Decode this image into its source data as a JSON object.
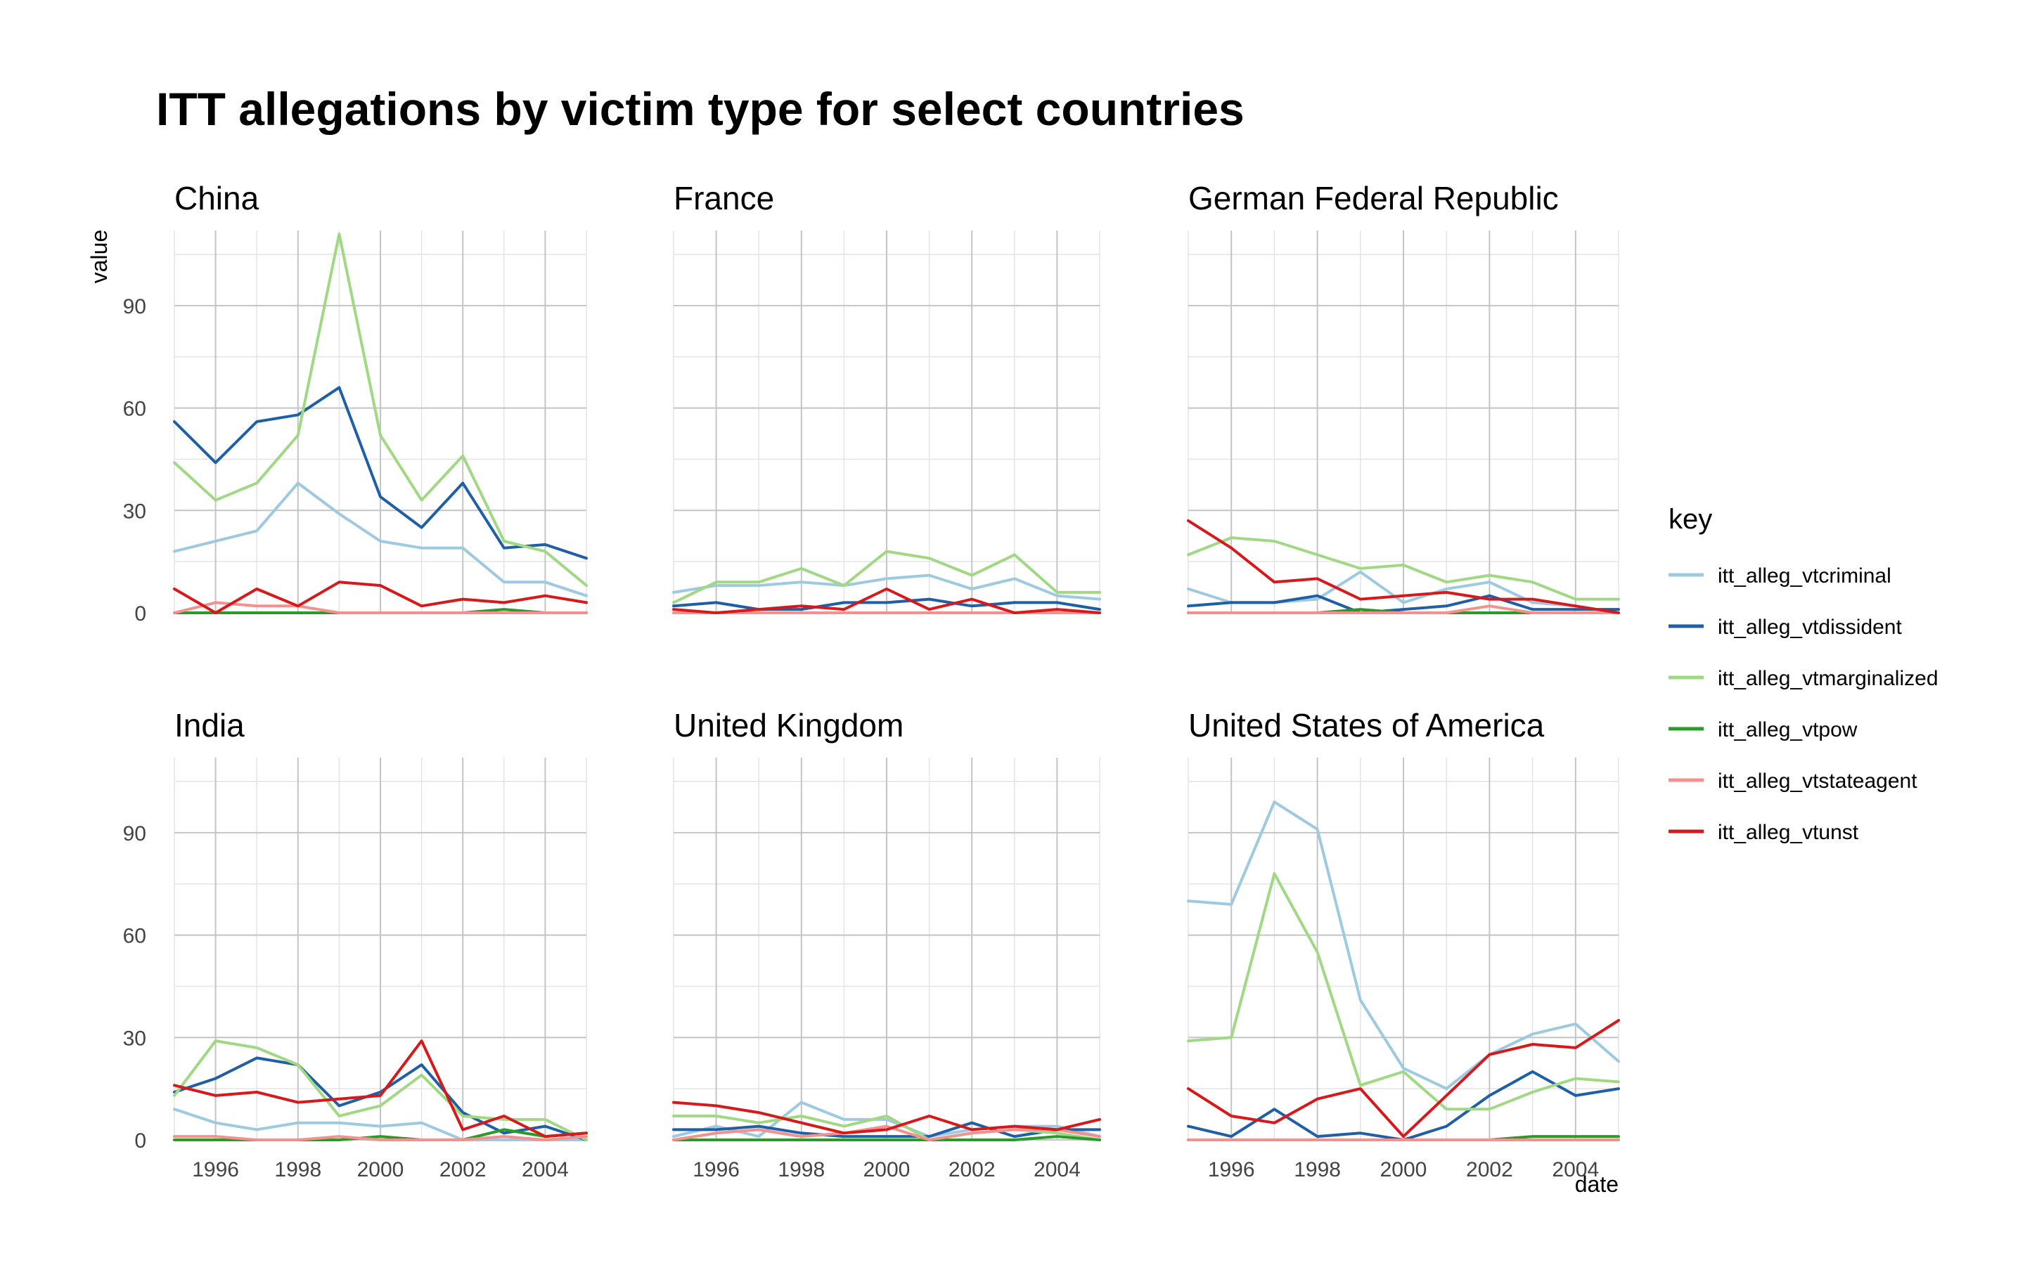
{
  "chart_data": {
    "type": "line",
    "title": "ITT allegations by victim type for select countries",
    "xlabel": "date",
    "ylabel": "value",
    "xlim": [
      1995,
      2005
    ],
    "ylim": [
      0,
      112
    ],
    "x_ticks": [
      1996,
      1998,
      2000,
      2002,
      2004
    ],
    "y_ticks": [
      0,
      30,
      60,
      90
    ],
    "grid": true,
    "legend": {
      "title": "key",
      "position": "right",
      "entries": [
        {
          "key": "itt_alleg_vtcriminal",
          "color": "#9ecae1"
        },
        {
          "key": "itt_alleg_vtdissident",
          "color": "#1f5fa6"
        },
        {
          "key": "itt_alleg_vtmarginalized",
          "color": "#a1d883"
        },
        {
          "key": "itt_alleg_vtpow",
          "color": "#2a9a2a"
        },
        {
          "key": "itt_alleg_vtstateagent",
          "color": "#f4908e"
        },
        {
          "key": "itt_alleg_vtunst",
          "color": "#d7191c"
        }
      ]
    },
    "x": [
      1995,
      1996,
      1997,
      1998,
      1999,
      2000,
      2001,
      2002,
      2003,
      2004,
      2005
    ],
    "panels": [
      {
        "name": "China",
        "series": [
          {
            "name": "itt_alleg_vtcriminal",
            "values": [
              18,
              21,
              24,
              38,
              29,
              21,
              19,
              19,
              9,
              9,
              5
            ]
          },
          {
            "name": "itt_alleg_vtdissident",
            "values": [
              56,
              44,
              56,
              58,
              66,
              34,
              25,
              38,
              19,
              20,
              16
            ]
          },
          {
            "name": "itt_alleg_vtmarginalized",
            "values": [
              44,
              33,
              38,
              52,
              111,
              52,
              33,
              46,
              21,
              18,
              8
            ]
          },
          {
            "name": "itt_alleg_vtpow",
            "values": [
              0,
              0,
              0,
              0,
              0,
              0,
              0,
              0,
              1,
              0,
              0
            ]
          },
          {
            "name": "itt_alleg_vtstateagent",
            "values": [
              0,
              3,
              2,
              2,
              0,
              0,
              0,
              0,
              0,
              0,
              0
            ]
          },
          {
            "name": "itt_alleg_vtunst",
            "values": [
              7,
              0,
              7,
              2,
              9,
              8,
              2,
              4,
              3,
              5,
              3
            ]
          }
        ]
      },
      {
        "name": "France",
        "series": [
          {
            "name": "itt_alleg_vtcriminal",
            "values": [
              6,
              8,
              8,
              9,
              8,
              10,
              11,
              7,
              10,
              5,
              4
            ]
          },
          {
            "name": "itt_alleg_vtdissident",
            "values": [
              2,
              3,
              1,
              1,
              3,
              3,
              4,
              2,
              3,
              3,
              1
            ]
          },
          {
            "name": "itt_alleg_vtmarginalized",
            "values": [
              3,
              9,
              9,
              13,
              8,
              18,
              16,
              11,
              17,
              6,
              6
            ]
          },
          {
            "name": "itt_alleg_vtpow",
            "values": [
              0,
              0,
              0,
              0,
              0,
              0,
              0,
              0,
              0,
              0,
              0
            ]
          },
          {
            "name": "itt_alleg_vtstateagent",
            "values": [
              0,
              0,
              0,
              0,
              0,
              0,
              0,
              0,
              0,
              0,
              0
            ]
          },
          {
            "name": "itt_alleg_vtunst",
            "values": [
              1,
              0,
              1,
              2,
              1,
              7,
              1,
              4,
              0,
              1,
              0
            ]
          }
        ]
      },
      {
        "name": "German Federal Republic",
        "series": [
          {
            "name": "itt_alleg_vtcriminal",
            "values": [
              7,
              3,
              3,
              4,
              12,
              3,
              7,
              9,
              3,
              2,
              0
            ]
          },
          {
            "name": "itt_alleg_vtdissident",
            "values": [
              2,
              3,
              3,
              5,
              0,
              1,
              2,
              5,
              1,
              1,
              1
            ]
          },
          {
            "name": "itt_alleg_vtmarginalized",
            "values": [
              17,
              22,
              21,
              17,
              13,
              14,
              9,
              11,
              9,
              4,
              4
            ]
          },
          {
            "name": "itt_alleg_vtpow",
            "values": [
              0,
              0,
              0,
              0,
              1,
              0,
              0,
              0,
              0,
              0,
              0
            ]
          },
          {
            "name": "itt_alleg_vtstateagent",
            "values": [
              0,
              0,
              0,
              0,
              0,
              0,
              0,
              2,
              0,
              0,
              0
            ]
          },
          {
            "name": "itt_alleg_vtunst",
            "values": [
              27,
              19,
              9,
              10,
              4,
              5,
              6,
              4,
              4,
              2,
              0
            ]
          }
        ]
      },
      {
        "name": "India",
        "series": [
          {
            "name": "itt_alleg_vtcriminal",
            "values": [
              9,
              5,
              3,
              5,
              5,
              4,
              5,
              0,
              0,
              0,
              0
            ]
          },
          {
            "name": "itt_alleg_vtdissident",
            "values": [
              14,
              18,
              24,
              22,
              10,
              14,
              22,
              8,
              2,
              4,
              0
            ]
          },
          {
            "name": "itt_alleg_vtmarginalized",
            "values": [
              13,
              29,
              27,
              22,
              7,
              10,
              19,
              7,
              6,
              6,
              0
            ]
          },
          {
            "name": "itt_alleg_vtpow",
            "values": [
              0,
              0,
              0,
              0,
              0,
              1,
              0,
              0,
              3,
              1,
              2
            ]
          },
          {
            "name": "itt_alleg_vtstateagent",
            "values": [
              1,
              1,
              0,
              0,
              1,
              0,
              0,
              0,
              1,
              0,
              1
            ]
          },
          {
            "name": "itt_alleg_vtunst",
            "values": [
              16,
              13,
              14,
              11,
              12,
              13,
              29,
              3,
              7,
              1,
              2
            ]
          }
        ]
      },
      {
        "name": "United Kingdom",
        "series": [
          {
            "name": "itt_alleg_vtcriminal",
            "values": [
              1,
              4,
              1,
              11,
              6,
              6,
              1,
              3,
              4,
              4,
              1
            ]
          },
          {
            "name": "itt_alleg_vtdissident",
            "values": [
              3,
              3,
              4,
              2,
              1,
              1,
              1,
              5,
              1,
              3,
              3
            ]
          },
          {
            "name": "itt_alleg_vtmarginalized",
            "values": [
              7,
              7,
              5,
              7,
              4,
              7,
              0,
              2,
              3,
              2,
              0
            ]
          },
          {
            "name": "itt_alleg_vtpow",
            "values": [
              0,
              0,
              0,
              0,
              0,
              0,
              0,
              0,
              0,
              1,
              0
            ]
          },
          {
            "name": "itt_alleg_vtstateagent",
            "values": [
              0,
              2,
              3,
              1,
              2,
              4,
              0,
              2,
              3,
              3,
              1
            ]
          },
          {
            "name": "itt_alleg_vtunst",
            "values": [
              11,
              10,
              8,
              5,
              2,
              3,
              7,
              3,
              4,
              3,
              6
            ]
          }
        ]
      },
      {
        "name": "United States of America",
        "series": [
          {
            "name": "itt_alleg_vtcriminal",
            "values": [
              70,
              69,
              99,
              91,
              41,
              21,
              15,
              25,
              31,
              34,
              23
            ]
          },
          {
            "name": "itt_alleg_vtdissident",
            "values": [
              4,
              1,
              9,
              1,
              2,
              0,
              4,
              13,
              20,
              13,
              15
            ]
          },
          {
            "name": "itt_alleg_vtmarginalized",
            "values": [
              29,
              30,
              78,
              55,
              16,
              20,
              9,
              9,
              14,
              18,
              17
            ]
          },
          {
            "name": "itt_alleg_vtpow",
            "values": [
              0,
              0,
              0,
              0,
              0,
              0,
              0,
              0,
              1,
              1,
              1
            ]
          },
          {
            "name": "itt_alleg_vtstateagent",
            "values": [
              0,
              0,
              0,
              0,
              0,
              0,
              0,
              0,
              0,
              0,
              0
            ]
          },
          {
            "name": "itt_alleg_vtunst",
            "values": [
              15,
              7,
              5,
              12,
              15,
              1,
              13,
              25,
              28,
              27,
              35
            ]
          }
        ]
      }
    ]
  }
}
